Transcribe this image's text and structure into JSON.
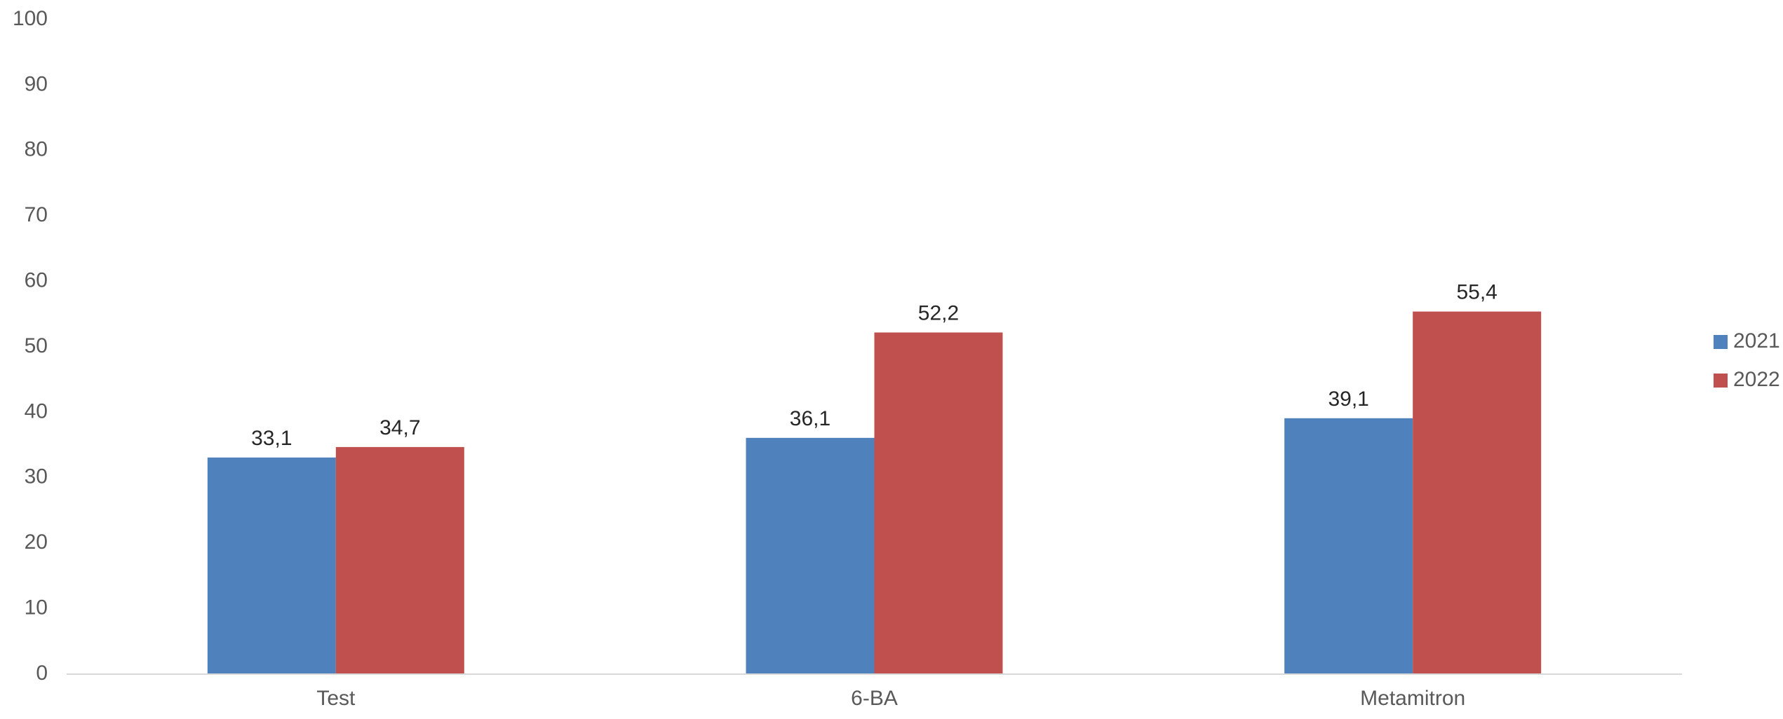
{
  "chart_data": {
    "type": "bar",
    "title": "",
    "xlabel": "",
    "ylabel": "",
    "categories": [
      "Test",
      "6-BA",
      "Metamitron"
    ],
    "series": [
      {
        "name": "2021",
        "color": "#4F81BD",
        "values": [
          33.1,
          36.1,
          39.1
        ],
        "labels": [
          "33,1",
          "36,1",
          "39,1"
        ]
      },
      {
        "name": "2022",
        "color": "#C0504D",
        "values": [
          34.7,
          52.2,
          55.4
        ],
        "labels": [
          "34,7",
          "52,2",
          "55,4"
        ]
      }
    ],
    "ylim": [
      0,
      100
    ],
    "yticks": [
      "0",
      "10",
      "20",
      "30",
      "40",
      "50",
      "60",
      "70",
      "80",
      "90",
      "100"
    ],
    "grid": false,
    "legend": "right"
  }
}
